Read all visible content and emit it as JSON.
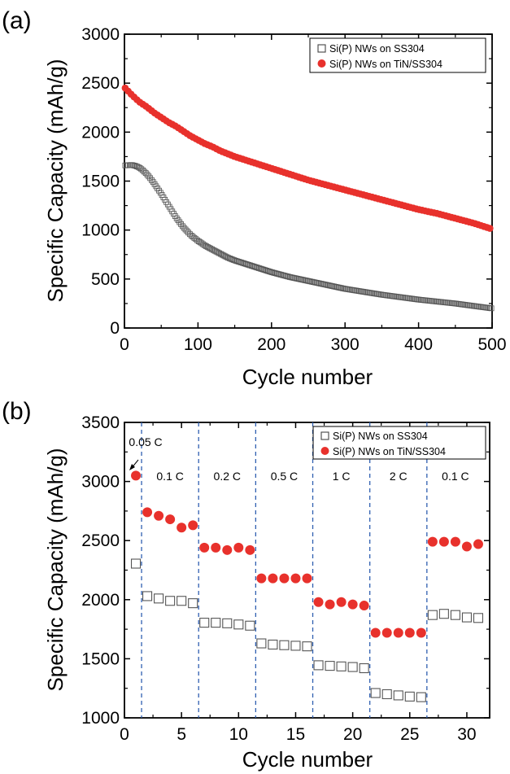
{
  "chart_data": [
    {
      "panel": "(a)",
      "type": "scatter",
      "xlabel": "Cycle number",
      "ylabel": "Specific Capacity (mAh/g)",
      "xlim": [
        0,
        500
      ],
      "ylim": [
        0,
        3000
      ],
      "xticks": [
        0,
        100,
        200,
        300,
        400,
        500
      ],
      "yticks": [
        0,
        500,
        1000,
        1500,
        2000,
        2500,
        3000
      ],
      "legend_position": "top-right",
      "series": [
        {
          "name": "Si(P) NWs on SS304",
          "marker": "open-square",
          "color": "#555555",
          "points": [
            [
              1,
              1660
            ],
            [
              10,
              1665
            ],
            [
              15,
              1655
            ],
            [
              20,
              1640
            ],
            [
              25,
              1610
            ],
            [
              30,
              1575
            ],
            [
              35,
              1530
            ],
            [
              40,
              1480
            ],
            [
              45,
              1425
            ],
            [
              50,
              1370
            ],
            [
              55,
              1310
            ],
            [
              60,
              1250
            ],
            [
              70,
              1130
            ],
            [
              80,
              1030
            ],
            [
              90,
              950
            ],
            [
              100,
              890
            ],
            [
              110,
              840
            ],
            [
              120,
              800
            ],
            [
              130,
              760
            ],
            [
              140,
              720
            ],
            [
              150,
              690
            ],
            [
              175,
              630
            ],
            [
              200,
              570
            ],
            [
              225,
              520
            ],
            [
              250,
              480
            ],
            [
              275,
              440
            ],
            [
              300,
              400
            ],
            [
              325,
              370
            ],
            [
              350,
              340
            ],
            [
              375,
              315
            ],
            [
              400,
              290
            ],
            [
              425,
              270
            ],
            [
              450,
              250
            ],
            [
              475,
              225
            ],
            [
              500,
              200
            ]
          ]
        },
        {
          "name": "Si(P) NWs on TiN/SS304",
          "marker": "filled-circle",
          "color": "#e8312c",
          "points": [
            [
              1,
              2450
            ],
            [
              10,
              2380
            ],
            [
              20,
              2310
            ],
            [
              30,
              2260
            ],
            [
              40,
              2200
            ],
            [
              50,
              2150
            ],
            [
              60,
              2100
            ],
            [
              70,
              2060
            ],
            [
              80,
              2010
            ],
            [
              90,
              1960
            ],
            [
              100,
              1920
            ],
            [
              110,
              1880
            ],
            [
              120,
              1850
            ],
            [
              130,
              1810
            ],
            [
              140,
              1780
            ],
            [
              150,
              1750
            ],
            [
              175,
              1690
            ],
            [
              200,
              1630
            ],
            [
              225,
              1570
            ],
            [
              250,
              1510
            ],
            [
              275,
              1460
            ],
            [
              300,
              1410
            ],
            [
              325,
              1360
            ],
            [
              350,
              1310
            ],
            [
              375,
              1260
            ],
            [
              400,
              1210
            ],
            [
              425,
              1170
            ],
            [
              450,
              1120
            ],
            [
              475,
              1070
            ],
            [
              500,
              1010
            ]
          ]
        }
      ]
    },
    {
      "panel": "(b)",
      "type": "scatter",
      "xlabel": "Cycle number",
      "ylabel": "Specific Capacity (mAh/g)",
      "xlim": [
        0,
        32
      ],
      "ylim": [
        1000,
        3500
      ],
      "xticks": [
        0,
        5,
        10,
        15,
        20,
        25,
        30
      ],
      "yticks": [
        1000,
        1500,
        2000,
        2500,
        3000,
        3500
      ],
      "legend_position": "top-right",
      "dividers_x": [
        1.5,
        6.5,
        11.5,
        16.5,
        21.5,
        26.5
      ],
      "rate_labels": [
        {
          "text": "0.05 C",
          "x": 1
        },
        {
          "text": "0.1 C",
          "x": 4
        },
        {
          "text": "0.2 C",
          "x": 9
        },
        {
          "text": "0.5 C",
          "x": 14
        },
        {
          "text": "1 C",
          "x": 19
        },
        {
          "text": "2 C",
          "x": 24
        },
        {
          "text": "0.1 C",
          "x": 29
        }
      ],
      "series": [
        {
          "name": "Si(P) NWs on SS304",
          "marker": "open-square",
          "color": "#555555",
          "x": [
            1,
            2,
            3,
            4,
            5,
            6,
            7,
            8,
            9,
            10,
            11,
            12,
            13,
            14,
            15,
            16,
            17,
            18,
            19,
            20,
            21,
            22,
            23,
            24,
            25,
            26,
            27,
            28,
            29,
            30,
            31
          ],
          "values": [
            2305,
            2030,
            2010,
            1990,
            1990,
            1970,
            1805,
            1805,
            1800,
            1790,
            1780,
            1630,
            1620,
            1615,
            1610,
            1605,
            1445,
            1440,
            1435,
            1430,
            1420,
            1210,
            1200,
            1190,
            1180,
            1175,
            1870,
            1880,
            1870,
            1850,
            1845
          ]
        },
        {
          "name": "Si(P) NWs on TiN/SS304",
          "marker": "filled-circle",
          "color": "#e8312c",
          "x": [
            1,
            2,
            3,
            4,
            5,
            6,
            7,
            8,
            9,
            10,
            11,
            12,
            13,
            14,
            15,
            16,
            17,
            18,
            19,
            20,
            21,
            22,
            23,
            24,
            25,
            26,
            27,
            28,
            29,
            30,
            31
          ],
          "values": [
            3050,
            2740,
            2710,
            2680,
            2610,
            2630,
            2440,
            2440,
            2420,
            2440,
            2420,
            2180,
            2180,
            2180,
            2180,
            2180,
            1980,
            1960,
            1980,
            1960,
            1950,
            1720,
            1720,
            1720,
            1720,
            1720,
            2490,
            2490,
            2490,
            2450,
            2470
          ]
        }
      ]
    }
  ]
}
